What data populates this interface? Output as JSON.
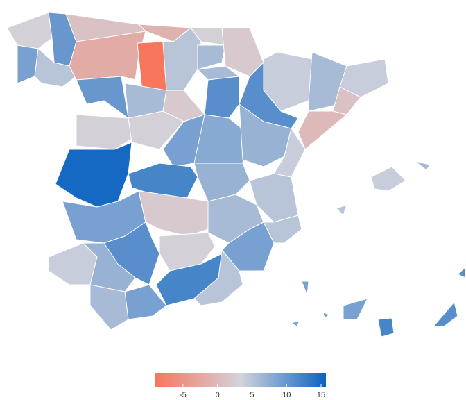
{
  "chart_data": {
    "type": "choropleth",
    "values": [
      3,
      10,
      9,
      5,
      1,
      -1,
      -2,
      -9,
      5,
      3,
      6,
      2,
      6,
      4,
      6,
      4,
      1,
      0,
      11,
      11,
      6,
      10,
      2,
      3,
      3,
      9,
      8,
      7,
      4,
      15,
      12,
      7,
      5,
      9,
      2,
      6,
      5,
      9,
      4,
      7,
      11,
      3,
      12,
      5,
      9,
      6,
      4,
      6,
      5,
      12,
      11,
      11,
      9,
      9,
      9,
      9
    ],
    "colorlim": [
      -9,
      15.7
    ],
    "colors": [
      "#f8765c",
      "#d3d3dc",
      "#0b63c1"
    ],
    "ticks": [
      -5,
      0,
      5,
      10,
      15
    ]
  }
}
